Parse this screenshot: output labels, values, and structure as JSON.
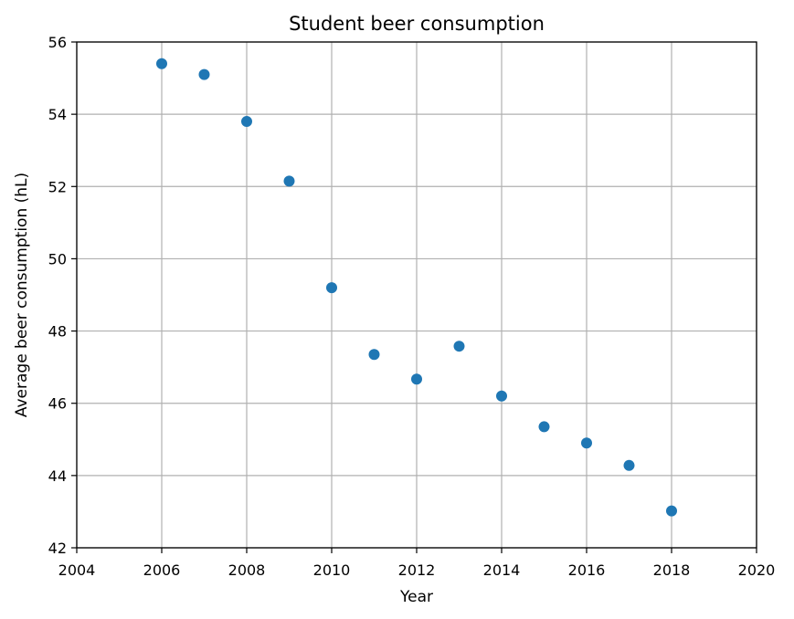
{
  "chart_data": {
    "type": "scatter",
    "title": "Student beer consumption",
    "xlabel": "Year",
    "ylabel": "Average beer consumption (hL)",
    "xlim": [
      2004,
      2020
    ],
    "ylim": [
      42,
      56
    ],
    "xticks": [
      2004,
      2006,
      2008,
      2010,
      2012,
      2014,
      2016,
      2018,
      2020
    ],
    "yticks": [
      42,
      44,
      46,
      48,
      50,
      52,
      54,
      56
    ],
    "grid": true,
    "marker_color": "#1f77b4",
    "points": [
      {
        "x": 2006,
        "y": 55.4
      },
      {
        "x": 2007,
        "y": 55.1
      },
      {
        "x": 2008,
        "y": 53.8
      },
      {
        "x": 2009,
        "y": 52.15
      },
      {
        "x": 2010,
        "y": 49.2
      },
      {
        "x": 2011,
        "y": 47.35
      },
      {
        "x": 2012,
        "y": 46.67
      },
      {
        "x": 2013,
        "y": 47.58
      },
      {
        "x": 2014,
        "y": 46.2
      },
      {
        "x": 2015,
        "y": 45.35
      },
      {
        "x": 2016,
        "y": 44.9
      },
      {
        "x": 2017,
        "y": 44.28
      },
      {
        "x": 2018,
        "y": 43.02
      }
    ]
  }
}
